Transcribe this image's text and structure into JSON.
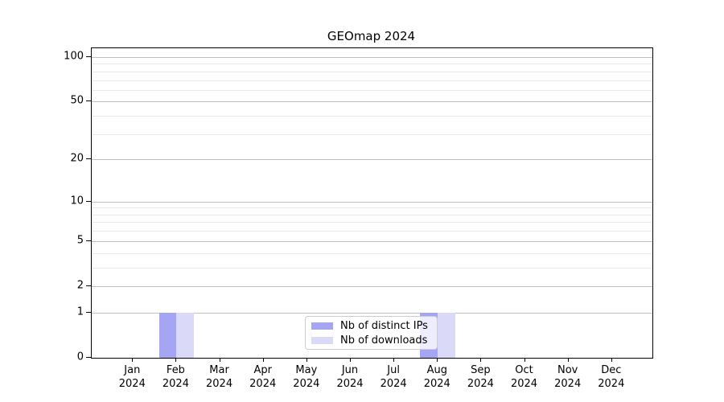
{
  "chart_data": {
    "type": "bar",
    "title": "GEOmap 2024",
    "categories": [
      "Jan 2024",
      "Feb 2024",
      "Mar 2024",
      "Apr 2024",
      "May 2024",
      "Jun 2024",
      "Jul 2024",
      "Aug 2024",
      "Sep 2024",
      "Oct 2024",
      "Nov 2024",
      "Dec 2024"
    ],
    "series": [
      {
        "name": "Nb of distinct IPs",
        "color": "#a5a5f4",
        "values": [
          0,
          1,
          0,
          0,
          0,
          0,
          0,
          1,
          0,
          0,
          0,
          0
        ]
      },
      {
        "name": "Nb of downloads",
        "color": "#dadaf8",
        "values": [
          0,
          1,
          0,
          0,
          0,
          0,
          0,
          1,
          0,
          0,
          0,
          0
        ]
      }
    ],
    "xlabel": "",
    "ylabel": "",
    "yscale": "log1p",
    "ylim": [
      0,
      115
    ],
    "yticks": [
      0,
      1,
      2,
      5,
      10,
      20,
      50,
      100
    ],
    "yticks_minor": [
      3,
      4,
      6,
      7,
      8,
      9,
      30,
      40,
      60,
      70,
      80,
      90
    ],
    "grid": "horizontal",
    "legend_position": "lower-center"
  },
  "colors": {
    "grid_major": "#c0c0c0",
    "grid_minor": "#eaeaea",
    "axis": "#000000",
    "background": "#ffffff"
  }
}
